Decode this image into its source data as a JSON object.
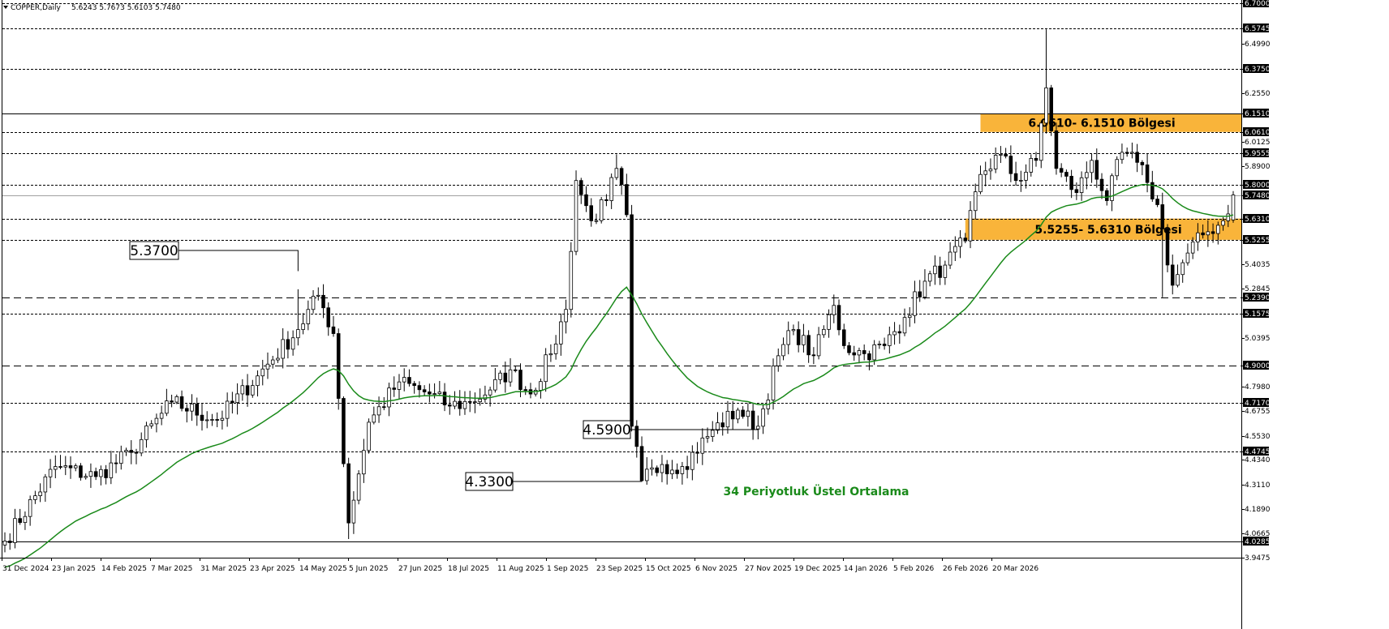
{
  "header": {
    "symbol": "COPPER,Daily",
    "ohlc": "5.6243 5.7673 5.6103 5.7480"
  },
  "colors": {
    "candle": "#000000",
    "ema": "#1a8a1a",
    "zone": "#f9b43a",
    "grid_line": "#000000",
    "price_line": "#a0a0a0"
  },
  "chart_data": {
    "type": "candlestick",
    "title": "COPPER,Daily",
    "ylim": [
      3.9475,
      6.7
    ],
    "x_ticks": [
      "31 Dec 2024",
      "23 Jan 2025",
      "14 Feb 2025",
      "7 Mar 2025",
      "31 Mar 2025",
      "23 Apr 2025",
      "14 May 2025",
      "5 Jun 2025",
      "27 Jun 2025",
      "18 Jul 2025",
      "11 Aug 2025",
      "1 Sep 2025",
      "23 Sep 2025",
      "15 Oct 2025",
      "6 Nov 2025",
      "27 Nov 2025",
      "19 Dec 2025",
      "14 Jan 2026",
      "5 Feb 2026",
      "26 Feb 2026",
      "20 Mar 2026"
    ],
    "y_ticks": [
      "6.7000",
      "6.5745",
      "6.4990",
      "6.3750",
      "6.2550",
      "6.1510",
      "6.0610",
      "6.0125",
      "5.9555",
      "5.8900",
      "5.8000",
      "5.7480",
      "5.6310",
      "5.5255",
      "5.4035",
      "5.2845",
      "5.2390",
      "5.1575",
      "5.0395",
      "4.9000",
      "4.7980",
      "4.7170",
      "4.6755",
      "4.5530",
      "4.4745",
      "4.4340",
      "4.3110",
      "4.1890",
      "4.0665",
      "4.0285",
      "3.9475"
    ],
    "levels": [
      {
        "value": 6.7,
        "style": "dotted"
      },
      {
        "value": 6.5745,
        "style": "dotted"
      },
      {
        "value": 6.375,
        "style": "dotted"
      },
      {
        "value": 6.151,
        "style": "solid"
      },
      {
        "value": 6.061,
        "style": "dotted"
      },
      {
        "value": 5.9555,
        "style": "dotted"
      },
      {
        "value": 5.8,
        "style": "dotted"
      },
      {
        "value": 5.631,
        "style": "dotted"
      },
      {
        "value": 5.5255,
        "style": "dotted"
      },
      {
        "value": 5.239,
        "style": "dashed"
      },
      {
        "value": 5.1575,
        "style": "dotted"
      },
      {
        "value": 4.9,
        "style": "dashed"
      },
      {
        "value": 4.717,
        "style": "dotted"
      },
      {
        "value": 4.4745,
        "style": "dotted"
      },
      {
        "value": 4.0285,
        "style": "solid"
      }
    ],
    "highlighted_ticks": [
      "6.7000",
      "6.5745",
      "6.3750",
      "6.1510",
      "6.0610",
      "5.9555",
      "5.8000",
      "5.7480",
      "5.6310",
      "5.5255",
      "5.2390",
      "5.1575",
      "4.9000",
      "4.7170",
      "4.4745",
      "4.0285"
    ],
    "current_price": 5.748,
    "zones": [
      {
        "low": 6.061,
        "high": 6.151,
        "label": "6.0610- 6.1510 Bölgesi"
      },
      {
        "low": 5.5255,
        "high": 5.631,
        "label": "5.5255- 5.6310 Bölgesi"
      }
    ],
    "ema_label": "34 Periyotluk Üstel Ortalama",
    "price_labels": [
      {
        "text": "5.3700",
        "value": 5.37
      },
      {
        "text": "4.5900",
        "value": 4.59
      },
      {
        "text": "4.3300",
        "value": 4.33
      }
    ],
    "waypoints": [
      [
        0,
        4.03
      ],
      [
        10,
        4.4
      ],
      [
        18,
        4.35
      ],
      [
        25,
        4.47
      ],
      [
        33,
        4.72
      ],
      [
        42,
        4.63
      ],
      [
        50,
        4.85
      ],
      [
        58,
        5.08
      ],
      [
        62,
        5.25
      ],
      [
        65,
        5.06
      ],
      [
        68,
        4.12
      ],
      [
        72,
        4.62
      ],
      [
        78,
        4.82
      ],
      [
        84,
        4.76
      ],
      [
        88,
        4.7
      ],
      [
        92,
        4.72
      ],
      [
        96,
        4.78
      ],
      [
        100,
        4.88
      ],
      [
        104,
        4.76
      ],
      [
        108,
        4.96
      ],
      [
        111,
        5.18
      ],
      [
        113,
        5.82
      ],
      [
        116,
        5.62
      ],
      [
        119,
        5.72
      ],
      [
        121,
        5.88
      ],
      [
        123,
        5.65
      ],
      [
        124,
        4.6
      ],
      [
        126,
        4.33
      ],
      [
        130,
        4.41
      ],
      [
        134,
        4.4
      ],
      [
        140,
        4.58
      ],
      [
        145,
        4.68
      ],
      [
        149,
        4.6
      ],
      [
        153,
        4.95
      ],
      [
        156,
        5.08
      ],
      [
        160,
        4.95
      ],
      [
        164,
        5.2
      ],
      [
        166,
        5.0
      ],
      [
        170,
        4.96
      ],
      [
        174,
        5.0
      ],
      [
        178,
        5.14
      ],
      [
        182,
        5.32
      ],
      [
        186,
        5.4
      ],
      [
        190,
        5.52
      ],
      [
        193,
        5.85
      ],
      [
        197,
        5.95
      ],
      [
        200,
        5.82
      ],
      [
        204,
        5.92
      ],
      [
        206,
        6.28
      ],
      [
        208,
        5.88
      ],
      [
        212,
        5.76
      ],
      [
        215,
        5.92
      ],
      [
        218,
        5.72
      ],
      [
        221,
        5.96
      ],
      [
        224,
        5.91
      ],
      [
        226,
        5.81
      ],
      [
        228,
        5.7
      ],
      [
        231,
        5.3
      ],
      [
        234,
        5.46
      ],
      [
        237,
        5.55
      ],
      [
        241,
        5.62
      ],
      [
        243,
        5.748
      ]
    ]
  }
}
